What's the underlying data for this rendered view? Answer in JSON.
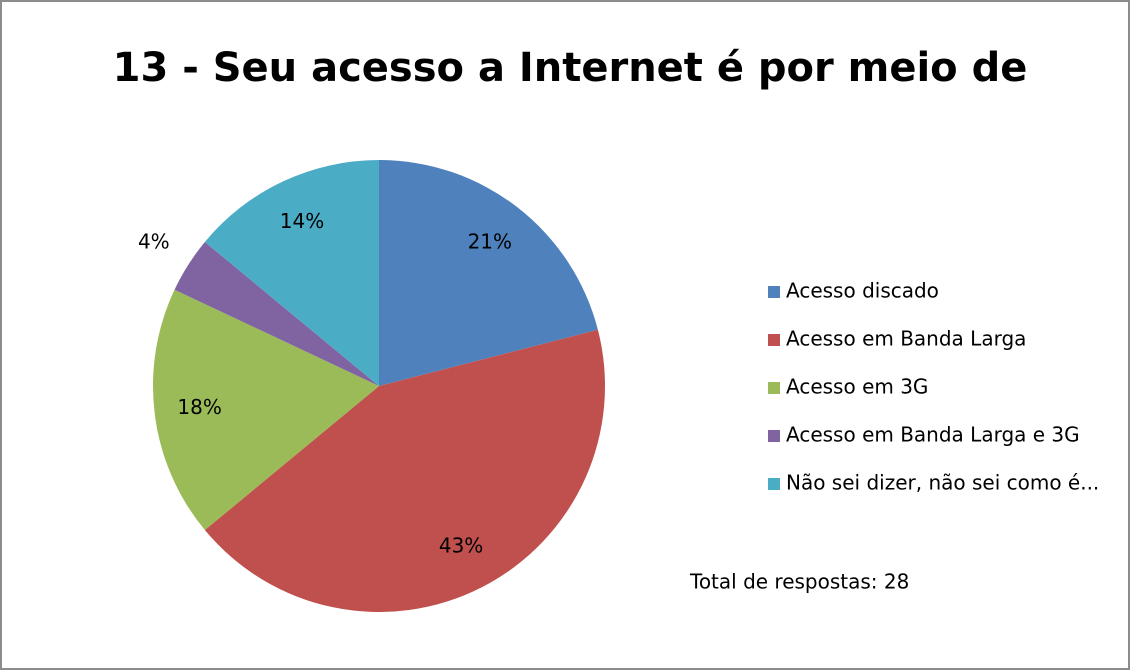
{
  "chart_data": {
    "type": "pie",
    "title": "13 - Seu acesso a Internet é por meio de",
    "categories": [
      "Acesso discado",
      "Acesso em Banda Larga",
      "Acesso em 3G",
      "Acesso em Banda Larga e 3G",
      "Não sei dizer, não sei como é..."
    ],
    "values": [
      21,
      43,
      18,
      4,
      14
    ],
    "value_labels": [
      "21%",
      "43%",
      "18%",
      "4%",
      "14%"
    ],
    "colors": [
      "#4f81bd",
      "#c0504d",
      "#9bbb59",
      "#8064a2",
      "#4bacc6"
    ],
    "legend": "right",
    "annotations": [
      "Total de respostas: 28"
    ]
  }
}
